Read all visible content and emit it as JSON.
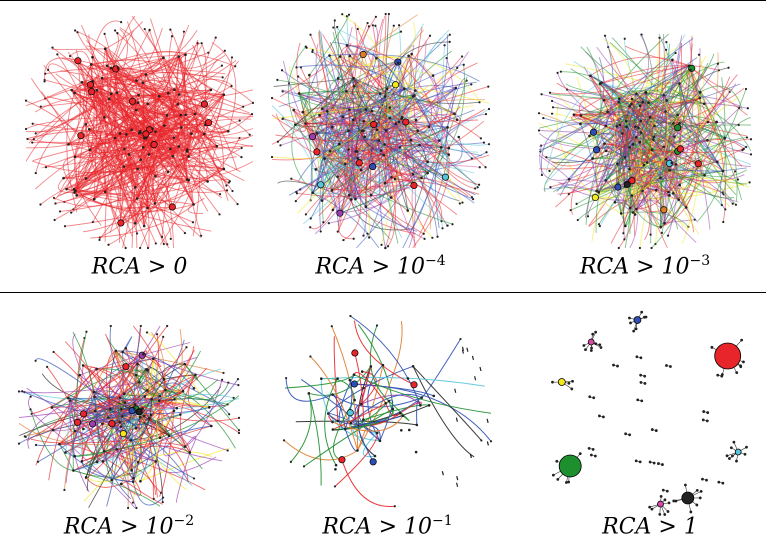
{
  "panels": [
    {
      "id": "p1",
      "caption_base": "RCA > 0",
      "caption_exp": "",
      "palette": [
        "#e8252a"
      ],
      "weights": [
        1.0
      ],
      "mode": "dense"
    },
    {
      "id": "p2",
      "caption_base": "RCA > 10",
      "caption_exp": "−4",
      "palette": [
        "#e8252a",
        "#2d4fb5",
        "#9b3fb0",
        "#56c6dc",
        "#f2e81c",
        "#1e8f2e",
        "#222222",
        "#e07b2a",
        "#d64aa6"
      ],
      "weights": [
        0.34,
        0.16,
        0.14,
        0.09,
        0.08,
        0.06,
        0.06,
        0.04,
        0.03
      ],
      "mode": "dense"
    },
    {
      "id": "p3",
      "caption_base": "RCA > 10",
      "caption_exp": "−3",
      "palette": [
        "#1e8f2e",
        "#e8252a",
        "#2d4fb5",
        "#9b3fb0",
        "#f2e81c",
        "#56c6dc",
        "#222222",
        "#e07b2a"
      ],
      "weights": [
        0.28,
        0.25,
        0.16,
        0.1,
        0.08,
        0.06,
        0.04,
        0.03
      ],
      "mode": "dense"
    },
    {
      "id": "p4",
      "caption_base": "RCA > 10",
      "caption_exp": "−2",
      "palette": [
        "#e8252a",
        "#2d4fb5",
        "#1e8f2e",
        "#9b3fb0",
        "#f2e81c",
        "#56c6dc",
        "#e07b2a",
        "#222222"
      ],
      "weights": [
        0.3,
        0.18,
        0.15,
        0.12,
        0.08,
        0.07,
        0.05,
        0.05
      ],
      "mode": "medium"
    },
    {
      "id": "p5",
      "caption_base": "RCA > 10",
      "caption_exp": "−1",
      "palette": [
        "#1e8f2e",
        "#e8252a",
        "#2d4fb5",
        "#9b3fb0",
        "#e07b2a",
        "#222222",
        "#56c6dc"
      ],
      "weights": [
        0.3,
        0.2,
        0.15,
        0.12,
        0.1,
        0.08,
        0.05
      ],
      "mode": "sparse"
    },
    {
      "id": "p6",
      "caption_base": "RCA > 1",
      "caption_exp": "",
      "palette": [
        "#e8252a",
        "#1e8f2e",
        "#222222",
        "#2d4fb5",
        "#f2e81c",
        "#d64aa6",
        "#56c6dc"
      ],
      "weights": [
        0.3,
        0.25,
        0.1,
        0.1,
        0.1,
        0.1,
        0.05
      ],
      "mode": "components"
    }
  ]
}
